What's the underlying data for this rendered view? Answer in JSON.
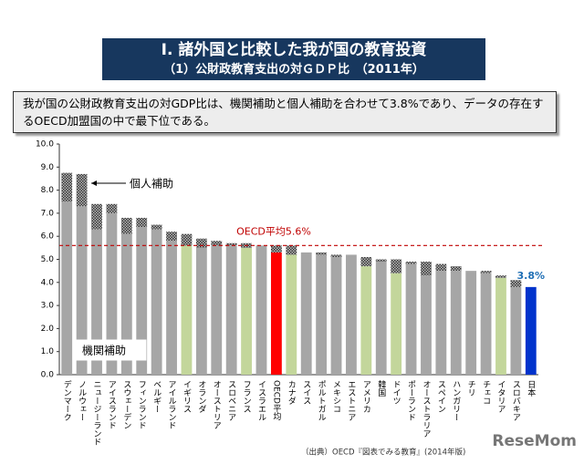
{
  "chart_data": {
    "type": "stacked-bar",
    "title": "Ⅰ. 諸外国と比較した我が国の教育投資",
    "subtitle": "（1）公財政教育支出の対ＧＤＰ比　（2011年）",
    "description": "我が国の公財政教育支出の対GDP比は、機関補助と個人補助を合わせて3.8%であり、データの存在するOECD加盟国の中で最下位である。",
    "source": "（出典）OECD『図表でみる教育』(2014年版)",
    "watermark": "ReseMom",
    "categories": [
      "デンマーク",
      "ノルウェー",
      "ニュージーランド",
      "アイスランド",
      "スウェーデン",
      "フィンランド",
      "ベルギー",
      "アイルランド",
      "イギリス",
      "オランダ",
      "オーストリア",
      "スロベニア",
      "フランス",
      "イスラエル",
      "OECD平均",
      "カナダ",
      "スイス",
      "ポルトガル",
      "メキシコ",
      "エストニア",
      "アメリカ",
      "韓国",
      "ドイツ",
      "ポーランド",
      "オーストラリア",
      "スペイン",
      "ハンガリー",
      "チリ",
      "チェコ",
      "イタリア",
      "スロバキア",
      "日本"
    ],
    "series": [
      {
        "name": "機関補助",
        "color": "#a6a6a6",
        "colors": [
          "#a6a6a6",
          "#a6a6a6",
          "#a6a6a6",
          "#a6a6a6",
          "#a6a6a6",
          "#a6a6a6",
          "#a6a6a6",
          "#a6a6a6",
          "#c3d69b",
          "#a6a6a6",
          "#a6a6a6",
          "#a6a6a6",
          "#c3d69b",
          "#a6a6a6",
          "#ff0000",
          "#c3d69b",
          "#a6a6a6",
          "#a6a6a6",
          "#a6a6a6",
          "#a6a6a6",
          "#c3d69b",
          "#a6a6a6",
          "#c3d69b",
          "#a6a6a6",
          "#a6a6a6",
          "#a6a6a6",
          "#a6a6a6",
          "#a6a6a6",
          "#a6a6a6",
          "#c3d69b",
          "#a6a6a6",
          "#0033cc"
        ],
        "values": [
          7.5,
          7.3,
          6.3,
          7.0,
          6.1,
          6.4,
          6.3,
          5.8,
          5.6,
          5.5,
          5.6,
          5.6,
          5.5,
          5.6,
          5.3,
          5.2,
          5.3,
          5.2,
          5.1,
          5.2,
          4.7,
          4.9,
          4.4,
          4.8,
          4.3,
          4.5,
          4.5,
          4.5,
          4.4,
          4.2,
          3.8,
          3.8
        ]
      },
      {
        "name": "個人補助",
        "color": "#555555",
        "values": [
          1.25,
          1.4,
          1.1,
          0.4,
          0.7,
          0.4,
          0.2,
          0.4,
          0.5,
          0.4,
          0.2,
          0.1,
          0.2,
          0,
          0.3,
          0.4,
          0,
          0.1,
          0.1,
          0,
          0.4,
          0.1,
          0.6,
          0.1,
          0.6,
          0.3,
          0.2,
          0,
          0.1,
          0.1,
          0.3,
          0
        ]
      }
    ],
    "annotations": [
      {
        "text": "OECD平均5.6%",
        "value": 5.6,
        "color": "#c00000"
      },
      {
        "text": "3.8%",
        "value": 3.8,
        "color": "#1f6fb5"
      }
    ],
    "ylim": [
      0,
      10
    ],
    "yticks": [
      {
        "value": 0,
        "label": "0.0"
      },
      {
        "value": 1,
        "label": "1.0"
      },
      {
        "value": 2,
        "label": "2.0"
      },
      {
        "value": 3,
        "label": "3.0"
      },
      {
        "value": 4,
        "label": "4.0"
      },
      {
        "value": 5,
        "label": "5.0"
      },
      {
        "value": 6,
        "label": "6.0"
      },
      {
        "value": 7,
        "label": "7.0"
      },
      {
        "value": 8,
        "label": "8.0"
      },
      {
        "value": 9,
        "label": "9.0"
      },
      {
        "value": 10,
        "label": "10.0"
      }
    ]
  }
}
